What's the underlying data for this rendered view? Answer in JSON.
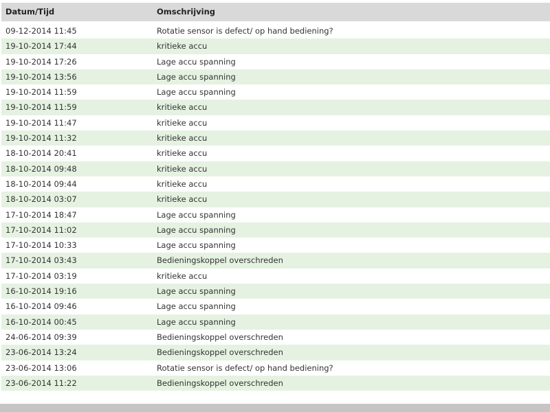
{
  "colors": {
    "header_bg": "#d9d9d9",
    "row_alt_bg": "#e5f2e1",
    "row_bg": "#ffffff",
    "footer_bg": "#c5c5c5",
    "text_color": "#333333",
    "header_text_color": "#222222"
  },
  "table": {
    "columns": [
      {
        "key": "datetime",
        "label": "Datum/Tijd"
      },
      {
        "key": "description",
        "label": "Omschrijving"
      }
    ],
    "rows": [
      {
        "datetime": "09-12-2014 11:45",
        "description": "Rotatie sensor is defect/ op hand bediening?"
      },
      {
        "datetime": "19-10-2014 17:44",
        "description": "kritieke accu"
      },
      {
        "datetime": "19-10-2014 17:26",
        "description": "Lage accu spanning"
      },
      {
        "datetime": "19-10-2014 13:56",
        "description": "Lage accu spanning"
      },
      {
        "datetime": "19-10-2014 11:59",
        "description": "Lage accu spanning"
      },
      {
        "datetime": "19-10-2014 11:59",
        "description": "kritieke accu"
      },
      {
        "datetime": "19-10-2014 11:47",
        "description": "kritieke accu"
      },
      {
        "datetime": "19-10-2014 11:32",
        "description": "kritieke accu"
      },
      {
        "datetime": "18-10-2014 20:41",
        "description": "kritieke accu"
      },
      {
        "datetime": "18-10-2014 09:48",
        "description": "kritieke accu"
      },
      {
        "datetime": "18-10-2014 09:44",
        "description": "kritieke accu"
      },
      {
        "datetime": "18-10-2014 03:07",
        "description": "kritieke accu"
      },
      {
        "datetime": "17-10-2014 18:47",
        "description": "Lage accu spanning"
      },
      {
        "datetime": "17-10-2014 11:02",
        "description": "Lage accu spanning"
      },
      {
        "datetime": "17-10-2014 10:33",
        "description": "Lage accu spanning"
      },
      {
        "datetime": "17-10-2014 03:43",
        "description": "Bedieningskoppel overschreden"
      },
      {
        "datetime": "17-10-2014 03:19",
        "description": "kritieke accu"
      },
      {
        "datetime": "16-10-2014 19:16",
        "description": "Lage accu spanning"
      },
      {
        "datetime": "16-10-2014 09:46",
        "description": "Lage accu spanning"
      },
      {
        "datetime": "16-10-2014 00:45",
        "description": "Lage accu spanning"
      },
      {
        "datetime": "24-06-2014 09:39",
        "description": "Bedieningskoppel overschreden"
      },
      {
        "datetime": "23-06-2014 13:24",
        "description": "Bedieningskoppel overschreden"
      },
      {
        "datetime": "23-06-2014 13:06",
        "description": "Rotatie sensor is defect/ op hand bediening?"
      },
      {
        "datetime": "23-06-2014 11:22",
        "description": "Bedieningskoppel overschreden"
      }
    ]
  }
}
